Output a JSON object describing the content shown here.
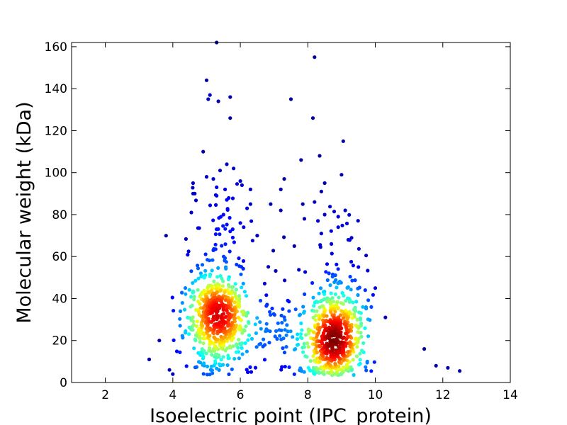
{
  "chart_data": {
    "type": "scatter",
    "title": "",
    "xlabel": "Isoelectric point (IPC_protein)",
    "ylabel": "Molecular weight (kDa)",
    "xlim": [
      1,
      14
    ],
    "ylim": [
      0,
      162
    ],
    "xticks": [
      "2",
      "4",
      "6",
      "8",
      "10",
      "12",
      "14"
    ],
    "xtick_values": [
      2,
      4,
      6,
      8,
      10,
      12,
      14
    ],
    "yticks": [
      "0",
      "20",
      "40",
      "60",
      "80",
      "100",
      "120",
      "140",
      "160"
    ],
    "ytick_values": [
      0,
      20,
      40,
      60,
      80,
      100,
      120,
      140,
      160
    ],
    "grid": false,
    "color_encoding": "point density (jet colormap: blue = low, dark red = high)",
    "colormap": [
      "#00008f",
      "#0000ff",
      "#007fff",
      "#00ffff",
      "#7fff7f",
      "#ffff00",
      "#ff7f00",
      "#ff0000",
      "#7f0000"
    ],
    "clusters": [
      {
        "center_x": 5.3,
        "center_y": 30,
        "count": 620,
        "spread_x": 0.45,
        "spread_y": 12
      },
      {
        "center_x": 8.8,
        "center_y": 20,
        "count": 640,
        "spread_x": 0.45,
        "spread_y": 11
      },
      {
        "center_x": 7.0,
        "center_y": 22,
        "count": 90,
        "spread_x": 0.6,
        "spread_y": 10
      }
    ],
    "outliers": [
      [
        5.3,
        162
      ],
      [
        8.2,
        155
      ],
      [
        5.0,
        144
      ],
      [
        5.1,
        137
      ],
      [
        5.05,
        135
      ],
      [
        5.35,
        134
      ],
      [
        5.7,
        136
      ],
      [
        7.5,
        135
      ],
      [
        5.7,
        126
      ],
      [
        8.15,
        126
      ],
      [
        9.05,
        115
      ],
      [
        4.9,
        110
      ],
      [
        8.35,
        108
      ],
      [
        7.8,
        106
      ],
      [
        5.6,
        104
      ],
      [
        5.8,
        102
      ],
      [
        5.4,
        101
      ],
      [
        9.0,
        99
      ],
      [
        5.0,
        98
      ],
      [
        5.2,
        97
      ],
      [
        7.3,
        97
      ],
      [
        6.0,
        96
      ],
      [
        4.6,
        95
      ],
      [
        8.5,
        95
      ],
      [
        5.3,
        93
      ],
      [
        5.55,
        92
      ],
      [
        6.3,
        92
      ],
      [
        7.2,
        92
      ],
      [
        8.4,
        91
      ],
      [
        4.6,
        90
      ],
      [
        4.65,
        90
      ],
      [
        5.3,
        89
      ],
      [
        5.6,
        87
      ],
      [
        8.2,
        86
      ],
      [
        7.85,
        85
      ],
      [
        6.9,
        85
      ],
      [
        6.3,
        85
      ],
      [
        6.2,
        83
      ],
      [
        7.2,
        82
      ],
      [
        4.55,
        81
      ],
      [
        5.5,
        80
      ],
      [
        8.5,
        80
      ],
      [
        8.9,
        79
      ],
      [
        7.9,
        78
      ],
      [
        6.0,
        76
      ],
      [
        8.3,
        77
      ],
      [
        6.1,
        74
      ],
      [
        8.9,
        74
      ],
      [
        5.7,
        72
      ],
      [
        8.4,
        71
      ],
      [
        6.5,
        70
      ],
      [
        9.2,
        68
      ],
      [
        8.7,
        66
      ],
      [
        7.6,
        65
      ],
      [
        9.5,
        55
      ],
      [
        9.7,
        44
      ],
      [
        10.0,
        45
      ],
      [
        10.3,
        31
      ],
      [
        11.45,
        16
      ],
      [
        11.8,
        8
      ],
      [
        12.15,
        7
      ],
      [
        12.5,
        5.5
      ],
      [
        3.3,
        11
      ],
      [
        3.6,
        20
      ],
      [
        3.9,
        6
      ],
      [
        4.0,
        4
      ]
    ]
  }
}
